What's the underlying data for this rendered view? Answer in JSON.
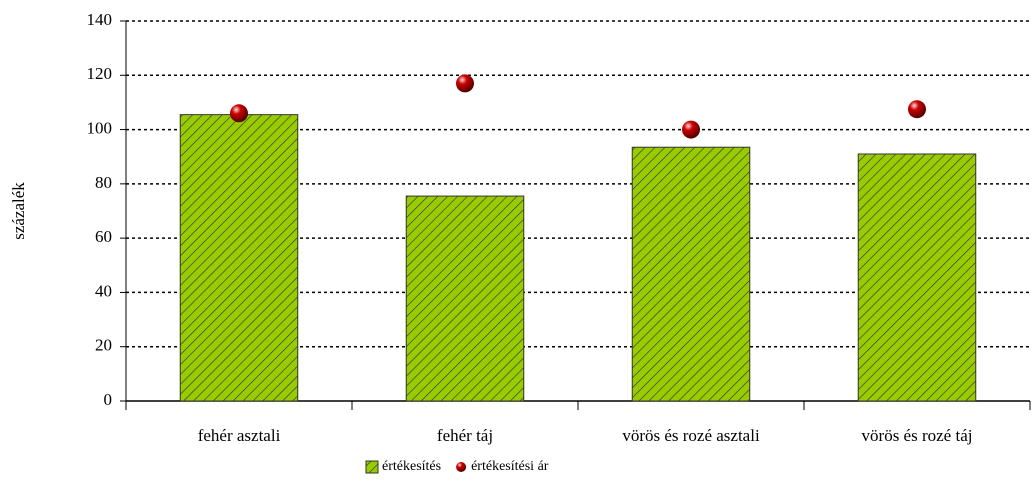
{
  "chart_data": {
    "type": "bar",
    "y_label": "százalék",
    "categories": [
      "fehér asztali",
      "fehér táj",
      "vörös és rozé asztali",
      "vörös és rozé táj"
    ],
    "series": [
      {
        "name": "értékesítés",
        "type": "bar",
        "color": "#99cc00",
        "values": [
          105.5,
          75.5,
          93.5,
          91
        ]
      },
      {
        "name": "értékesítési ár",
        "type": "scatter",
        "color": "#cc0000",
        "values": [
          106,
          117,
          100,
          107.5
        ]
      }
    ],
    "ylim": [
      0,
      140
    ],
    "yticks": [
      0,
      20,
      40,
      60,
      80,
      100,
      120,
      140
    ],
    "grid": true
  }
}
